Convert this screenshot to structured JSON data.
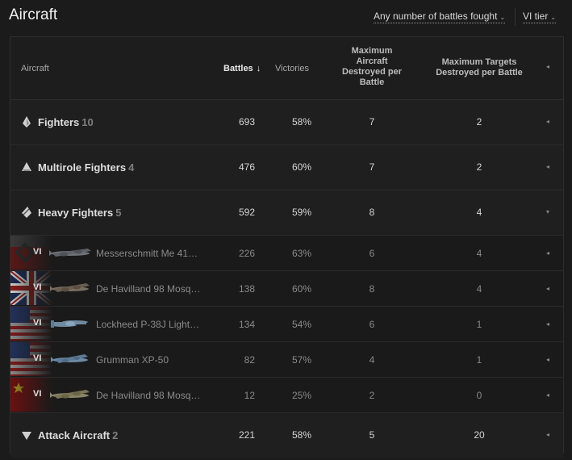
{
  "page": {
    "title": "Aircraft"
  },
  "filters": {
    "battles": "Any number of battles fought",
    "tier": "VI tier"
  },
  "table": {
    "columns": {
      "aircraft": "Aircraft",
      "battles": "Battles",
      "battles_sort": "↓",
      "victories": "Victories",
      "max_aircraft": [
        "Maximum",
        "Aircraft",
        "Destroyed per",
        "Battle"
      ],
      "max_targets": [
        "Maximum Targets",
        "Destroyed per Battle"
      ]
    },
    "groups": [
      {
        "name": "Fighters",
        "count": "10",
        "battles": "693",
        "victories": "58%",
        "max_aircraft": "7",
        "max_targets": "2",
        "expander": "◂"
      },
      {
        "name": "Multirole Fighters",
        "count": "4",
        "battles": "476",
        "victories": "60%",
        "max_aircraft": "7",
        "max_targets": "2",
        "expander": "◂"
      },
      {
        "name": "Heavy Fighters",
        "count": "5",
        "battles": "592",
        "victories": "59%",
        "max_aircraft": "8",
        "max_targets": "4",
        "expander": "▾"
      },
      {
        "name": "Attack Aircraft",
        "count": "2",
        "battles": "221",
        "victories": "58%",
        "max_aircraft": "5",
        "max_targets": "20",
        "expander": "◂"
      }
    ],
    "vehicles": [
      {
        "tier": "VI",
        "name": "Messerschmitt Me 41…",
        "battles": "226",
        "victories": "63%",
        "max_aircraft": "6",
        "max_targets": "4",
        "flag": "germany",
        "plane_color": "#6f7378"
      },
      {
        "tier": "VI",
        "name": "De Havilland 98 Mosq…",
        "battles": "138",
        "victories": "60%",
        "max_aircraft": "8",
        "max_targets": "4",
        "flag": "uk",
        "plane_color": "#7a6e62"
      },
      {
        "tier": "VI",
        "name": "Lockheed P-38J Light…",
        "battles": "134",
        "victories": "54%",
        "max_aircraft": "6",
        "max_targets": "1",
        "flag": "usa",
        "plane_color": "#6f8aa0"
      },
      {
        "tier": "VI",
        "name": "Grumman XP-50",
        "battles": "82",
        "victories": "57%",
        "max_aircraft": "4",
        "max_targets": "1",
        "flag": "usa",
        "plane_color": "#6f8aa6"
      },
      {
        "tier": "VI",
        "name": "De Havilland 98 Mosq…",
        "battles": "12",
        "victories": "25%",
        "max_aircraft": "2",
        "max_targets": "0",
        "flag": "china",
        "plane_color": "#8a8566"
      }
    ]
  },
  "colors": {
    "background": "#1b1b1b",
    "panel": "#1d1d1d",
    "text_primary": "#dedede",
    "text_muted": "#8a8a8a"
  }
}
